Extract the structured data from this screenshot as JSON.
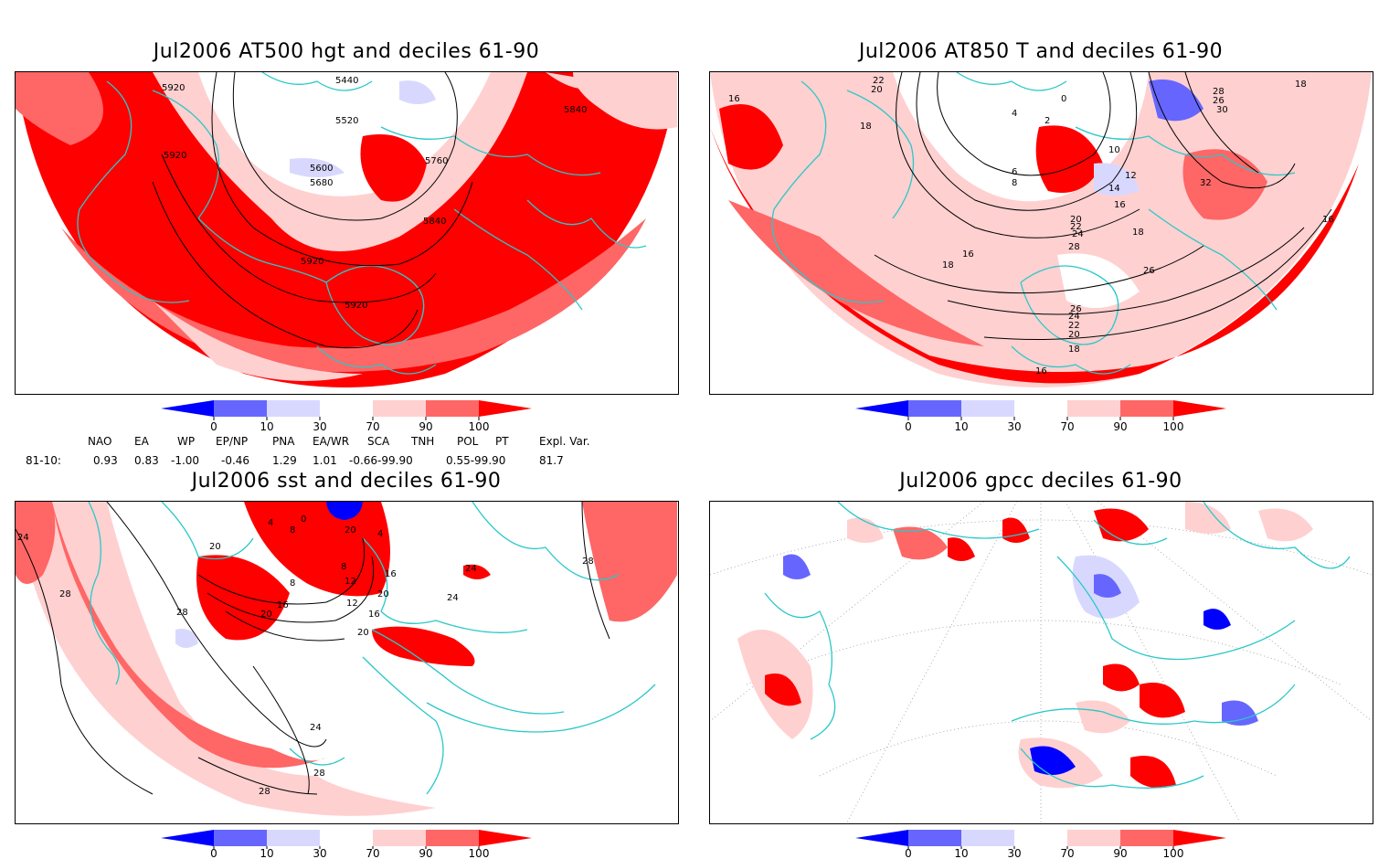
{
  "panels": [
    {
      "id": "p1",
      "title": "Jul2006 AT500 hgt and deciles 61-90",
      "contour_labels": [
        "5440",
        "5920",
        "5520",
        "5840",
        "5920",
        "5600",
        "5760",
        "5680",
        "5840",
        "5920",
        "5920"
      ]
    },
    {
      "id": "p2",
      "title": "Jul2006 AT850 T and deciles 61-90",
      "contour_labels": [
        "22",
        "20",
        "18",
        "16",
        "4",
        "0",
        "2",
        "10",
        "6",
        "8",
        "12",
        "14",
        "16",
        "20",
        "22",
        "24",
        "28",
        "18",
        "26",
        "26",
        "24",
        "22",
        "20",
        "18",
        "16",
        "16",
        "32",
        "26",
        "28",
        "30",
        "18",
        "16",
        "18"
      ]
    },
    {
      "id": "p3",
      "title": "Jul2006 sst and deciles 61-90",
      "contour_labels": [
        "24",
        "28",
        "20",
        "28",
        "8",
        "4",
        "8",
        "12",
        "16",
        "20",
        "20",
        "16",
        "12",
        "8",
        "4",
        "0",
        "20",
        "16",
        "20",
        "24",
        "24",
        "28",
        "24",
        "28",
        "28"
      ]
    },
    {
      "id": "p4",
      "title": "Jul2006 gpcc deciles 61-90",
      "contour_labels": []
    }
  ],
  "colorbar": {
    "labels": [
      "0",
      "10",
      "30",
      "70",
      "90",
      "100"
    ],
    "colors": [
      "#0000ff",
      "#6666ff",
      "#d8d8ff",
      "#ffffff",
      "#ffd0d0",
      "#ff6666",
      "#ff0000"
    ]
  },
  "indices": {
    "headers": [
      "NAO",
      "EA",
      "WP",
      "EP/NP",
      "PNA",
      "EA/WR",
      "SCA",
      "TNH",
      "POL",
      "PT",
      "Expl. Var."
    ],
    "row_label": "81-10:",
    "values": [
      "0.93",
      "0.83",
      "-1.00",
      "-0.46",
      "1.29",
      "1.01",
      "-0.66-99.90",
      "",
      "0.55-99.90",
      "",
      "81.7"
    ]
  },
  "colors": {
    "border": "#2ac8c8",
    "contour": "#000000"
  }
}
